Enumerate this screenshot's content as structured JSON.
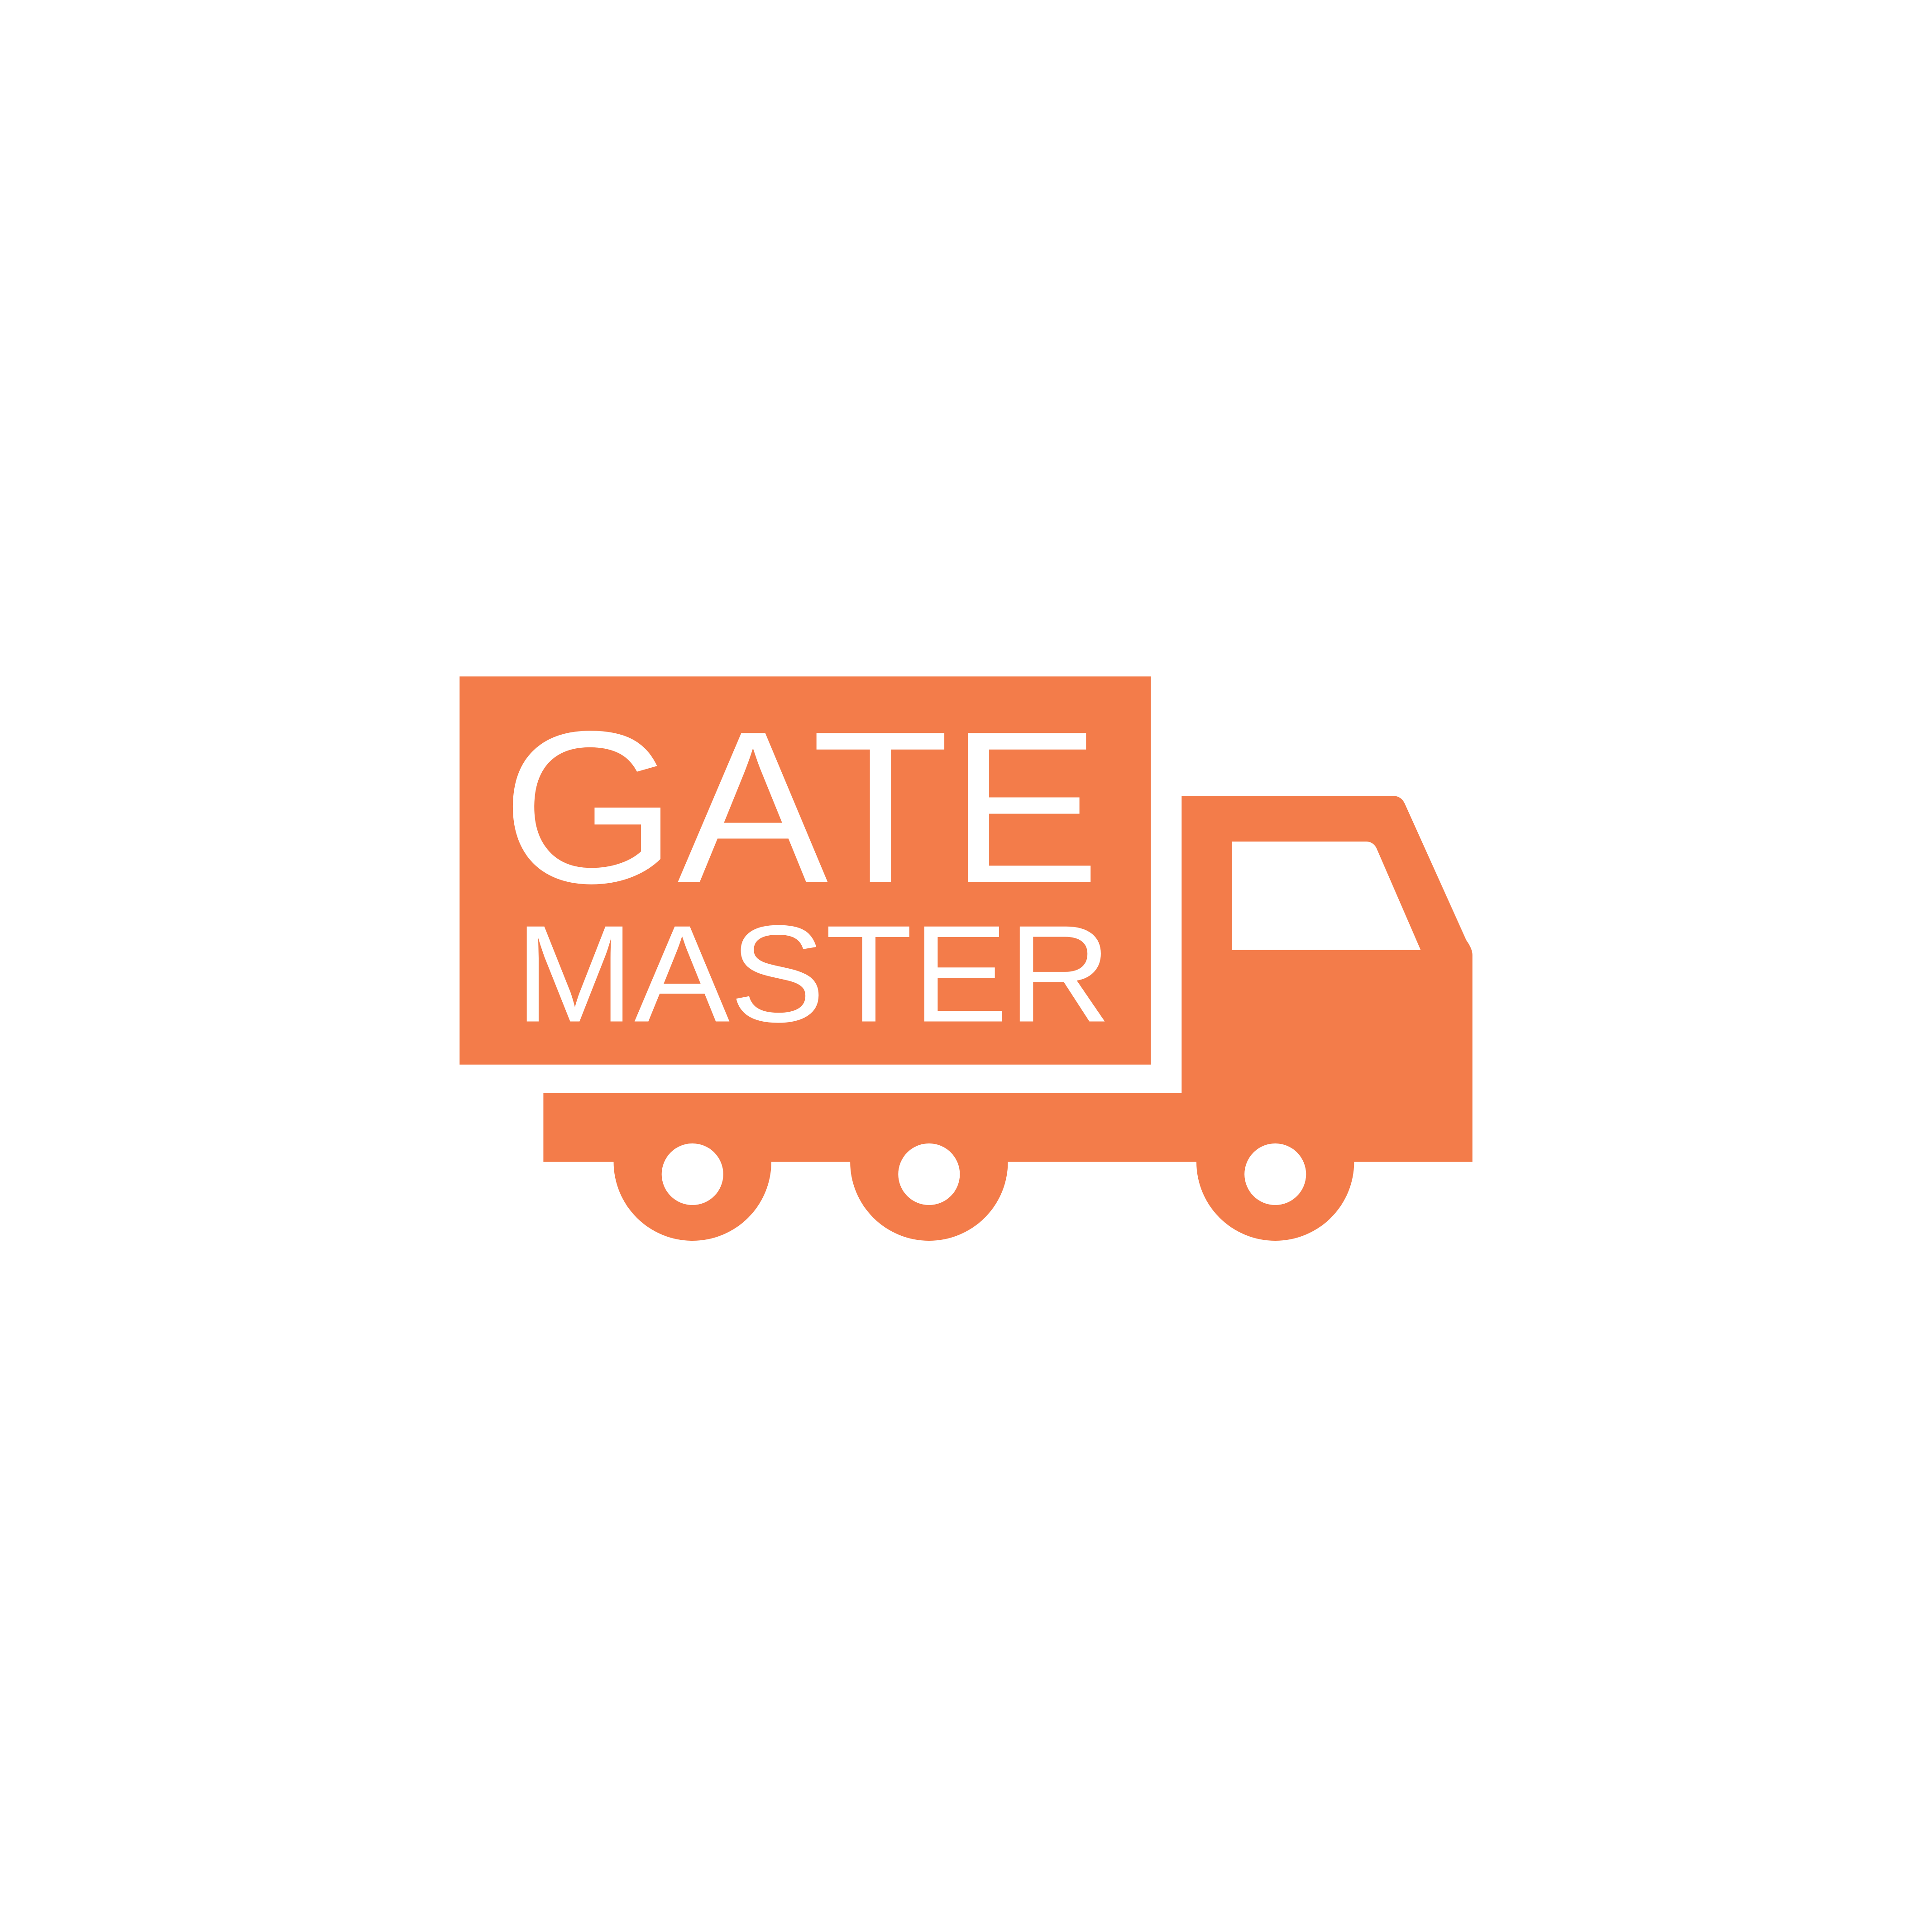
{
  "brand": {
    "line1": "GATE",
    "line2": "MASTER"
  },
  "colors": {
    "accent": "#F37C4A",
    "background": "#FFFFFF",
    "text": "#FFFFFF"
  },
  "icon": "delivery-truck-icon"
}
